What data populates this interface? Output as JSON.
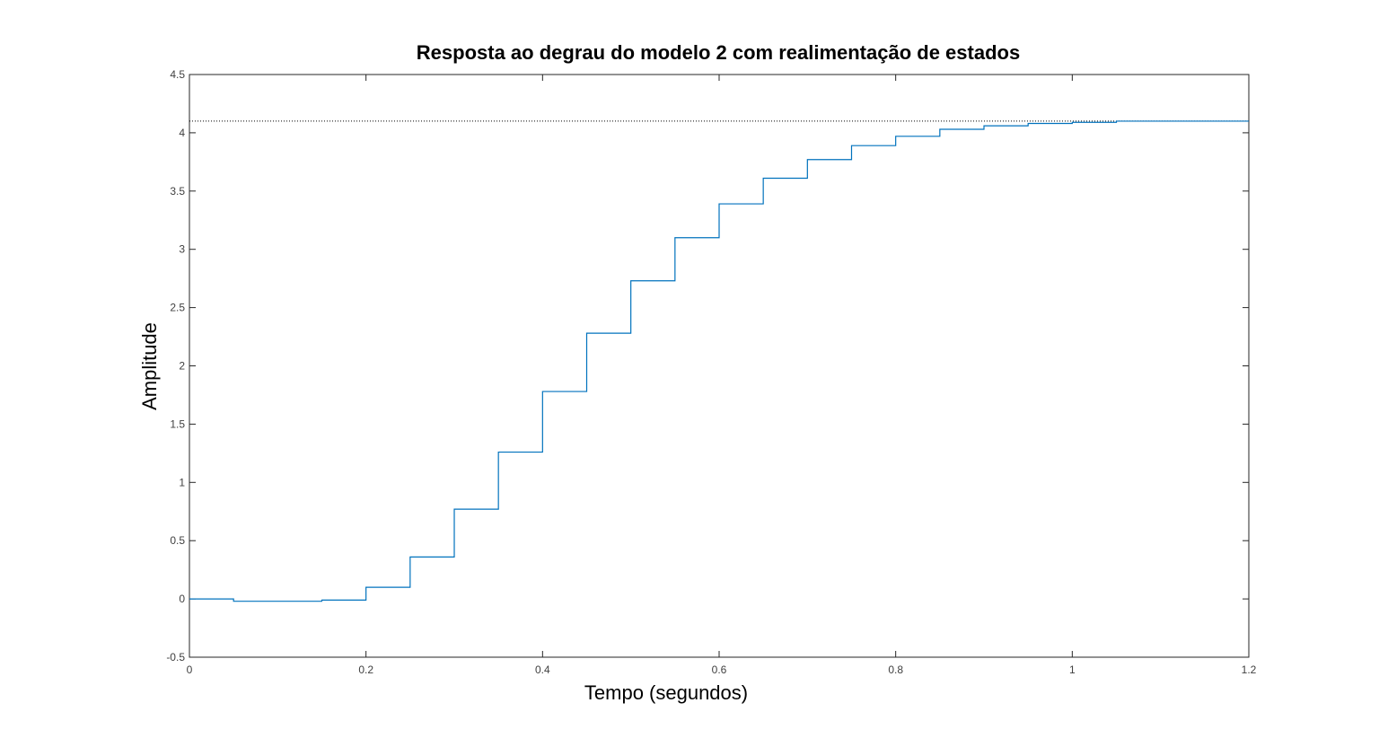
{
  "chart_data": {
    "type": "line",
    "title": "Resposta ao degrau do modelo 2 com realimentação de estados",
    "xlabel": "Tempo (segundos)",
    "ylabel": "Amplitude",
    "xlim": [
      0,
      1.2
    ],
    "ylim": [
      -0.5,
      4.5
    ],
    "xticks": [
      "0",
      "0.2",
      "0.4",
      "0.6",
      "0.8",
      "1",
      "1.2"
    ],
    "yticks": [
      "-0.5",
      "0",
      "0.5",
      "1",
      "1.5",
      "2",
      "2.5",
      "3",
      "3.5",
      "4",
      "4.5"
    ],
    "grid": false,
    "steady_state_reference": 4.1,
    "series": [
      {
        "style": "stairs",
        "color": "#0072bd",
        "x": [
          0,
          0.05,
          0.1,
          0.15,
          0.2,
          0.25,
          0.3,
          0.35,
          0.4,
          0.45,
          0.5,
          0.55,
          0.6,
          0.65,
          0.7,
          0.75,
          0.8,
          0.85,
          0.9,
          0.95,
          1.0,
          1.05,
          1.1,
          1.15,
          1.2
        ],
        "y": [
          0,
          -0.02,
          -0.02,
          -0.01,
          0.1,
          0.36,
          0.77,
          1.26,
          1.78,
          2.28,
          2.73,
          3.1,
          3.39,
          3.61,
          3.77,
          3.89,
          3.97,
          4.03,
          4.06,
          4.08,
          4.09,
          4.1,
          4.1,
          4.1,
          4.1
        ]
      }
    ]
  }
}
